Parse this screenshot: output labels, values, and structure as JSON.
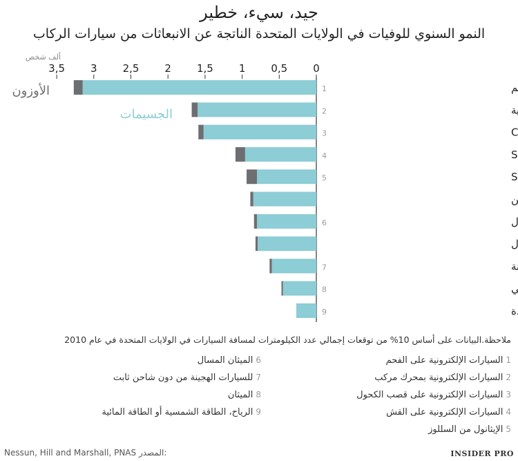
{
  "title": "جيد، سيء، خطير",
  "subtitle": "النمو السنوي للوفيات في الولايات المتحدة الناتجة عن الانبعاثات من سيارات الركاب",
  "unit_label": "ألف شخص",
  "series_labels": {
    "ozone": "الأوزون",
    "particles": "الجسيمات"
  },
  "colors": {
    "ozone": "#6d6e71",
    "particles": "#8ccdd6",
    "axis": "#333333"
  },
  "chart_data": {
    "type": "bar",
    "orientation": "horizontal",
    "stacked": true,
    "xlim": [
      0,
      3.5
    ],
    "ticks": [
      "0",
      "0,5",
      "1",
      "1,5",
      "2",
      "2,5",
      "3",
      "3,5"
    ],
    "tick_values": [
      0,
      0.5,
      1,
      1.5,
      2,
      2.5,
      3,
      3.5
    ],
    "categories": [
      {
        "label": "السيارات الإلكترونية على الفحم",
        "num": "1"
      },
      {
        "label": "متوسط السيارات الإلكترونية",
        "num": "2"
      },
      {
        "label": "إيثانول C",
        "num": "3"
      },
      {
        "label": "السيارات الإلكترونية على كبريت S",
        "num": "4"
      },
      {
        "label": "إيثانول S",
        "num": "5"
      },
      {
        "label": "البنزين",
        "num": ""
      },
      {
        "label": "الغاز المسال",
        "num": "6"
      },
      {
        "label": "وقود الديزل",
        "num": ""
      },
      {
        "label": "وقود السيارات الهجينة",
        "num": "7"
      },
      {
        "label": "السيارات الإلكترونية على الغاز الطبيعي",
        "num": "8"
      },
      {
        "label": "السيارات الإلكترونية بمصادر متجددة",
        "num": "9"
      }
    ],
    "series": [
      {
        "name": "الجسيمات",
        "values": [
          3.15,
          1.6,
          1.52,
          0.96,
          0.8,
          0.85,
          0.8,
          0.79,
          0.6,
          0.45,
          0.27
        ]
      },
      {
        "name": "الأوزون",
        "values": [
          0.12,
          0.08,
          0.07,
          0.13,
          0.14,
          0.04,
          0.04,
          0.03,
          0.03,
          0.02,
          0.0
        ]
      }
    ]
  },
  "note": "ملاحظة.البيانات على أساس 10% من توقعات إجمالي عدد الكيلومترات لمسافة السيارات في الولايات المتحدة في عام 2010",
  "footnotes_right": [
    {
      "num": "1",
      "text": "السيارات الإلكترونية على الفحم"
    },
    {
      "num": "2",
      "text": "السيارات الإلكترونية بمحرك مركب"
    },
    {
      "num": "3",
      "text": "السيارات الإلكترونية على قصب الكحول"
    },
    {
      "num": "4",
      "text": "السيارات الإلكترونية على القش"
    },
    {
      "num": "5",
      "text": "الإيثانول من السللوز"
    }
  ],
  "footnotes_left": [
    {
      "num": "6",
      "text": "الميثان المسال"
    },
    {
      "num": "7",
      "text": "للسيارات الهجينة من دون شاحن ثابت"
    },
    {
      "num": "8",
      "text": "الميثان"
    },
    {
      "num": "9",
      "text": "الرياح، الطاقة الشمسية أو الطاقة المائية"
    }
  ],
  "source_label": "المصدر:",
  "source_text": "Nessun, Hill and Marshall, PNAS",
  "brand": "INSIDER PRO"
}
